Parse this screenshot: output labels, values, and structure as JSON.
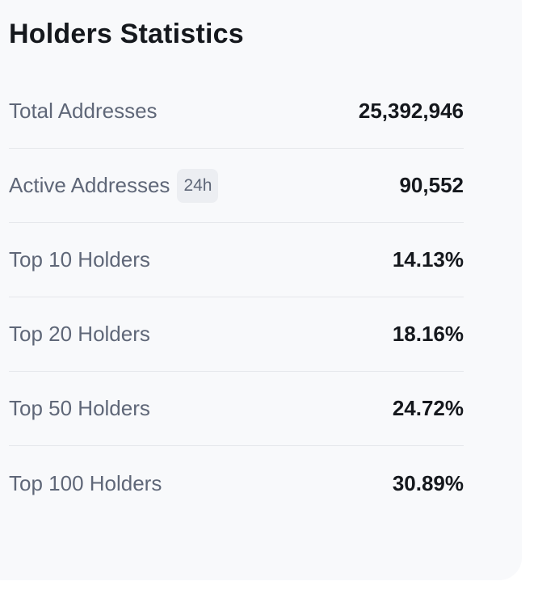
{
  "card": {
    "title": "Holders Statistics",
    "stats": [
      {
        "label": "Total Addresses",
        "value": "25,392,946"
      },
      {
        "label": "Active Addresses",
        "badge": "24h",
        "value": "90,552"
      },
      {
        "label": "Top 10 Holders",
        "value": "14.13%"
      },
      {
        "label": "Top 20 Holders",
        "value": "18.16%"
      },
      {
        "label": "Top 50 Holders",
        "value": "24.72%"
      },
      {
        "label": "Top 100 Holders",
        "value": "30.89%"
      }
    ]
  },
  "colors": {
    "card_background": "#f8f9fb",
    "title_text": "#15181d",
    "label_text": "#5f6778",
    "value_text": "#15181d",
    "divider": "#e5e7eb",
    "badge_background": "#eceef2"
  }
}
